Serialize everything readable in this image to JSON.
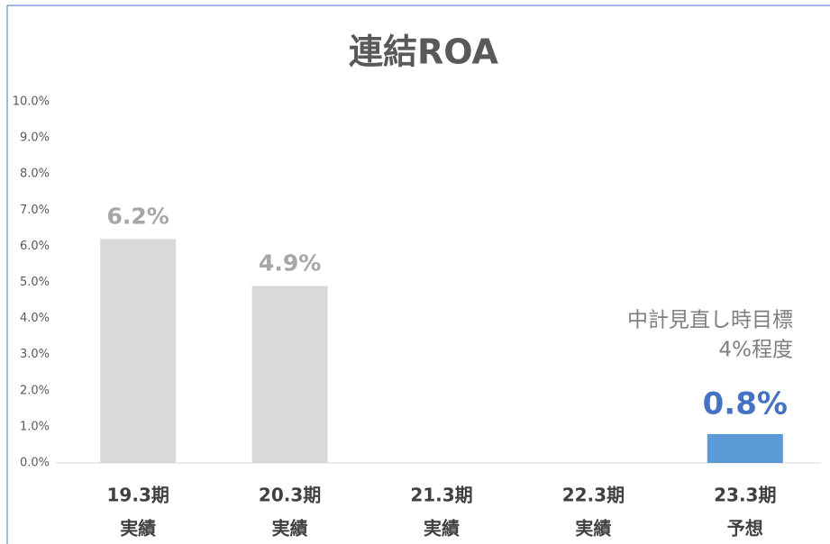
{
  "chart_data": {
    "type": "bar",
    "title": "連結ROA",
    "categories": [
      "19.3期",
      "20.3期",
      "21.3期",
      "22.3期",
      "23.3期"
    ],
    "category_notes": [
      "実績",
      "実績",
      "実績",
      "実績",
      "予想"
    ],
    "values": [
      6.2,
      4.9,
      null,
      null,
      0.8
    ],
    "value_labels": [
      "6.2%",
      "4.9%",
      null,
      null,
      "0.8%"
    ],
    "colors": [
      "#d9d9d9",
      "#d9d9d9",
      null,
      null,
      "#5b9bd5"
    ],
    "value_label_colors": [
      "#a6a6a6",
      "#a6a6a6",
      null,
      null,
      "#4472c4"
    ],
    "ylim": [
      0,
      10
    ],
    "yticks": [
      {
        "value": 0,
        "label": "0.0%"
      },
      {
        "value": 1,
        "label": "1.0%"
      },
      {
        "value": 2,
        "label": "2.0%"
      },
      {
        "value": 3,
        "label": "3.0%"
      },
      {
        "value": 4,
        "label": "4.0%"
      },
      {
        "value": 5,
        "label": "5.0%"
      },
      {
        "value": 6,
        "label": "6.0%"
      },
      {
        "value": 7,
        "label": "7.0%"
      },
      {
        "value": 8,
        "label": "8.0%"
      },
      {
        "value": 9,
        "label": "9.0%"
      },
      {
        "value": 10,
        "label": "10.0%"
      }
    ],
    "grid": false,
    "annotations": [
      "中計見直し時目標",
      "4%程度"
    ]
  }
}
